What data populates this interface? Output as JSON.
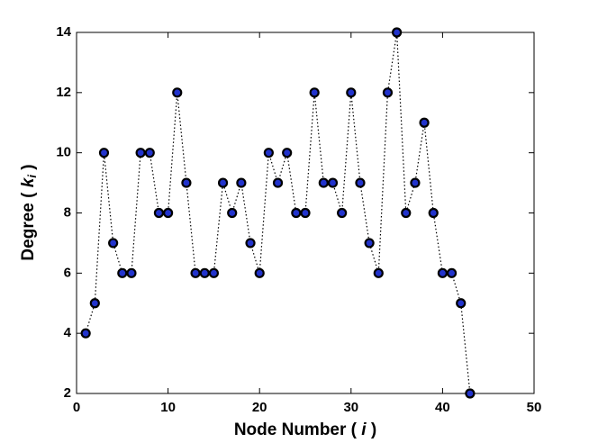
{
  "chart_data": {
    "type": "line",
    "xlabel_parts": [
      "Node Number ( ",
      "i",
      " )"
    ],
    "ylabel_parts": [
      "Degree ( ",
      "k",
      "i",
      " )"
    ],
    "x": [
      1,
      2,
      3,
      4,
      5,
      6,
      7,
      8,
      9,
      10,
      11,
      12,
      13,
      14,
      15,
      16,
      17,
      18,
      19,
      20,
      21,
      22,
      23,
      24,
      25,
      26,
      27,
      28,
      29,
      30,
      31,
      32,
      33,
      34,
      35,
      36,
      37,
      38,
      39,
      40,
      41,
      42,
      43
    ],
    "series": [
      {
        "color": "#2233cc",
        "values": [
          4,
          5,
          10,
          7,
          6,
          6,
          10,
          10,
          8,
          8,
          12,
          9,
          6,
          6,
          6,
          9,
          8,
          9,
          7,
          6,
          10,
          9,
          10,
          8,
          8,
          12,
          9,
          9,
          8,
          12,
          9,
          7,
          6,
          12,
          14,
          8,
          9,
          11,
          8,
          6,
          6,
          5,
          2
        ]
      }
    ],
    "xlim": [
      0,
      50
    ],
    "xticks": [
      0,
      10,
      20,
      30,
      40,
      50
    ],
    "ylim": [
      2,
      14
    ],
    "yticks": [
      2,
      4,
      6,
      8,
      10,
      12,
      14
    ]
  }
}
